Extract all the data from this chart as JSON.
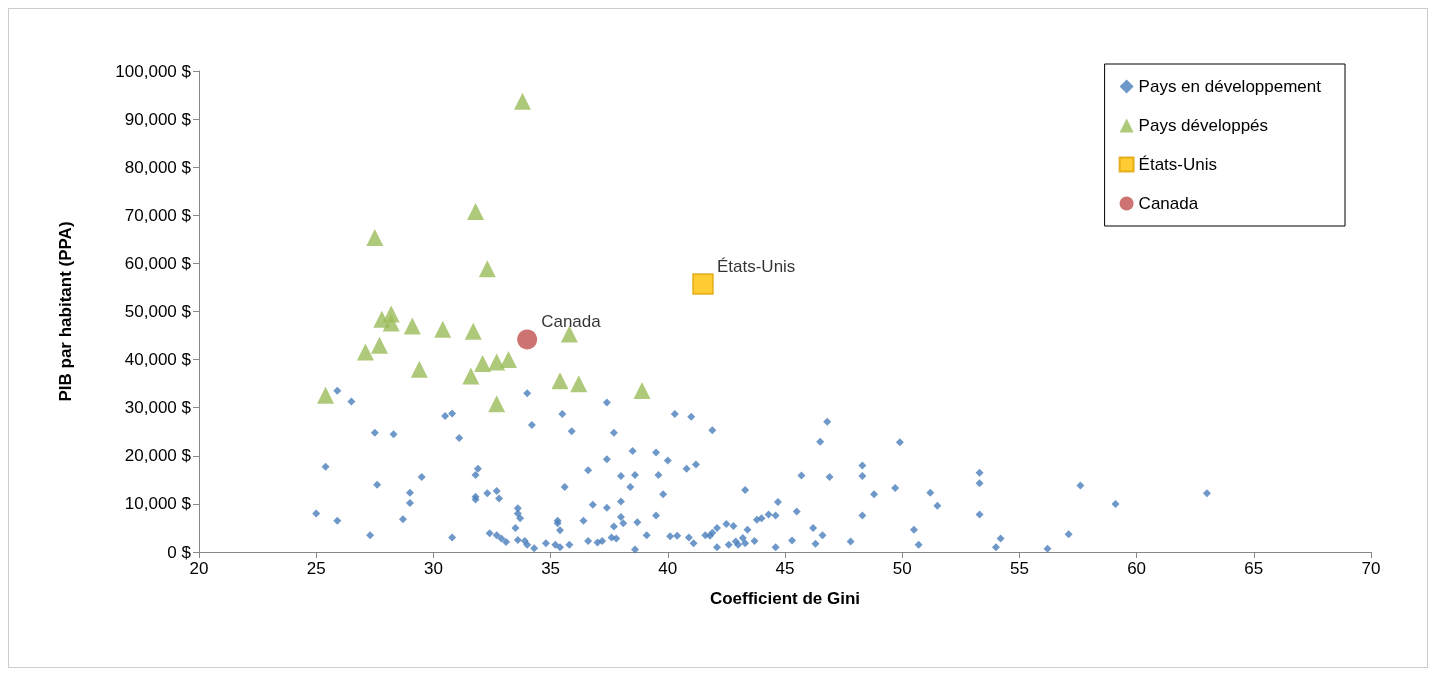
{
  "chart_data": {
    "type": "scatter",
    "xlabel": "Coefficient de Gini",
    "ylabel": "PIB par habitant (PPA)",
    "xlim": [
      20,
      70
    ],
    "xticks": [
      20,
      25,
      30,
      35,
      40,
      45,
      50,
      55,
      60,
      65,
      70
    ],
    "ylim": [
      0,
      100000
    ],
    "yticks": [
      {
        "value": 0,
        "label": "0 $"
      },
      {
        "value": 10000,
        "label": "10,000 $"
      },
      {
        "value": 20000,
        "label": "20,000 $"
      },
      {
        "value": 30000,
        "label": "30,000 $"
      },
      {
        "value": 40000,
        "label": "40,000 $"
      },
      {
        "value": 50000,
        "label": "50,000 $"
      },
      {
        "value": 60000,
        "label": "60,000 $"
      },
      {
        "value": 70000,
        "label": "70,000 $"
      },
      {
        "value": 80000,
        "label": "80,000 $"
      },
      {
        "value": 90000,
        "label": "90,000 $"
      },
      {
        "value": 100000,
        "label": "100,000 $"
      }
    ],
    "grid": false,
    "legend": "top right",
    "annotations": [
      {
        "text": "Canada",
        "x": 34.0,
        "y": 44200
      },
      {
        "text": "États-Unis",
        "x": 41.5,
        "y": 55700
      }
    ],
    "series": [
      {
        "name": "Pays en développement",
        "color": "#4a7ebb",
        "marker": "diamond",
        "x": [
          25.9,
          26.5,
          25.4,
          27.5,
          28.3,
          27.6,
          25.0,
          25.9,
          27.3,
          28.7,
          29.0,
          29.0,
          29.5,
          30.5,
          30.8,
          31.1,
          30.8,
          31.9,
          31.8,
          31.8,
          31.8,
          32.3,
          32.7,
          32.8,
          32.4,
          32.7,
          32.9,
          33.1,
          33.6,
          33.6,
          33.7,
          33.5,
          33.6,
          33.9,
          34.0,
          34.2,
          34.0,
          34.3,
          34.8,
          35.3,
          35.3,
          35.4,
          35.2,
          35.4,
          35.5,
          35.6,
          35.9,
          35.8,
          36.4,
          36.6,
          36.8,
          36.6,
          37.0,
          37.2,
          37.4,
          37.4,
          37.4,
          37.7,
          37.7,
          37.6,
          37.8,
          38.0,
          38.0,
          38.0,
          38.1,
          38.4,
          38.5,
          38.6,
          38.6,
          38.7,
          39.1,
          39.5,
          39.5,
          39.6,
          39.8,
          40.0,
          40.1,
          40.3,
          40.4,
          40.8,
          41.0,
          41.2,
          40.9,
          41.1,
          41.6,
          41.8,
          41.9,
          41.9,
          42.1,
          42.1,
          42.5,
          42.6,
          42.8,
          42.9,
          43.0,
          43.2,
          43.3,
          43.3,
          43.4,
          43.7,
          43.8,
          44.0,
          44.3,
          44.6,
          44.7,
          44.6,
          45.3,
          45.5,
          45.7,
          46.2,
          46.3,
          46.5,
          46.6,
          46.8,
          46.9,
          47.8,
          48.3,
          48.3,
          48.3,
          48.8,
          49.7,
          49.9,
          50.5,
          50.7,
          51.2,
          51.5,
          53.3,
          53.3,
          53.3,
          54.0,
          54.2,
          56.2,
          57.1,
          57.6,
          59.1,
          63.0
        ],
        "values": [
          33500,
          31300,
          17700,
          24800,
          24500,
          14000,
          8000,
          6500,
          3500,
          6800,
          12300,
          10200,
          15600,
          28300,
          28800,
          23700,
          3000,
          17300,
          16000,
          11500,
          10900,
          12200,
          12700,
          11100,
          3900,
          3500,
          2800,
          2100,
          9100,
          8000,
          7000,
          5000,
          2500,
          2300,
          33000,
          26400,
          1500,
          800,
          1800,
          6500,
          6000,
          4500,
          1500,
          1000,
          28700,
          13500,
          25100,
          1500,
          6500,
          17000,
          9800,
          2300,
          2000,
          2300,
          31100,
          19300,
          9200,
          24800,
          5300,
          3000,
          2800,
          15800,
          10500,
          7300,
          6000,
          13500,
          21000,
          16000,
          500,
          6200,
          3500,
          20700,
          7600,
          16000,
          12000,
          19000,
          3300,
          28700,
          3400,
          17300,
          28100,
          18200,
          3000,
          1800,
          3500,
          3400,
          25300,
          4000,
          5000,
          1000,
          5800,
          1500,
          5400,
          2200,
          1500,
          2900,
          12900,
          1800,
          4600,
          2300,
          6700,
          7000,
          7800,
          7600,
          10400,
          1000,
          2400,
          8400,
          15900,
          5000,
          1700,
          22900,
          3500,
          27100,
          15600,
          2200,
          18000,
          15800,
          7600,
          12000,
          13300,
          22800,
          4600,
          1500,
          12300,
          9600,
          16500,
          14300,
          7800,
          1000,
          2800,
          700,
          3700,
          13800,
          10000,
          12200
        ]
      },
      {
        "name": "Pays développés",
        "color": "#9bbb59",
        "marker": "triangle",
        "x": [
          33.8,
          31.8,
          27.5,
          32.3,
          28.2,
          27.8,
          28.2,
          29.1,
          30.4,
          31.7,
          35.8,
          27.7,
          27.1,
          33.2,
          32.7,
          32.1,
          29.4,
          31.6,
          35.4,
          36.2,
          38.9,
          25.4,
          32.7
        ],
        "values": [
          93700,
          70800,
          65400,
          58900,
          49500,
          48400,
          47600,
          47000,
          46300,
          45900,
          45300,
          43000,
          41600,
          40000,
          39500,
          39200,
          38000,
          36600,
          35600,
          35000,
          33600,
          32600,
          30800
        ]
      },
      {
        "name": "États-Unis",
        "color": "#ffc000",
        "marker": "square",
        "x": [
          41.5
        ],
        "values": [
          55700
        ]
      },
      {
        "name": "Canada",
        "color": "#c0504d",
        "marker": "circle",
        "x": [
          34.0
        ],
        "values": [
          44200
        ]
      }
    ]
  }
}
